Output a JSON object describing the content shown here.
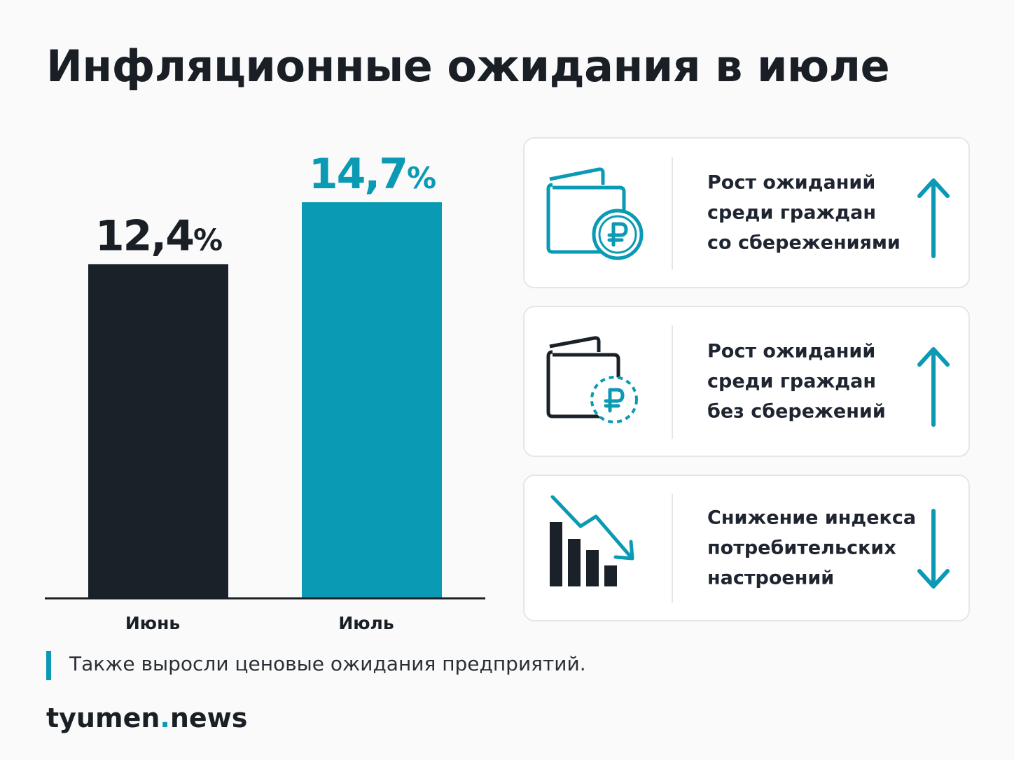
{
  "title": "Инфляционные ожидания в июле",
  "colors": {
    "dark": "#1a2129",
    "accent": "#0a9ab3"
  },
  "chart_data": {
    "type": "bar",
    "categories": [
      "Июнь",
      "Июль"
    ],
    "values": [
      12.4,
      14.7
    ],
    "value_labels": [
      "12,4",
      "14,7"
    ],
    "unit": "%",
    "bar_colors": [
      "#1a2129",
      "#0a9ab3"
    ],
    "label_colors": [
      "#1a1f26",
      "#0a9ab3"
    ],
    "ylim": [
      0,
      14.7
    ]
  },
  "cards": [
    {
      "lines": [
        "Рост ожиданий",
        "среди граждан",
        "со сбережениями"
      ],
      "icon": "wallet-ruble-icon",
      "trend": "up"
    },
    {
      "lines": [
        "Рост ожиданий",
        "среди граждан",
        "без сбережений"
      ],
      "icon": "empty-wallet-ruble-icon",
      "trend": "up"
    },
    {
      "lines": [
        "Снижение индекса",
        "потребительских",
        "настроений"
      ],
      "icon": "declining-chart-icon",
      "trend": "down"
    }
  ],
  "note": "Также выросли ценовые ожидания предприятий.",
  "brand": {
    "name": "tyumen",
    "dot": ".",
    "suffix": "news"
  }
}
